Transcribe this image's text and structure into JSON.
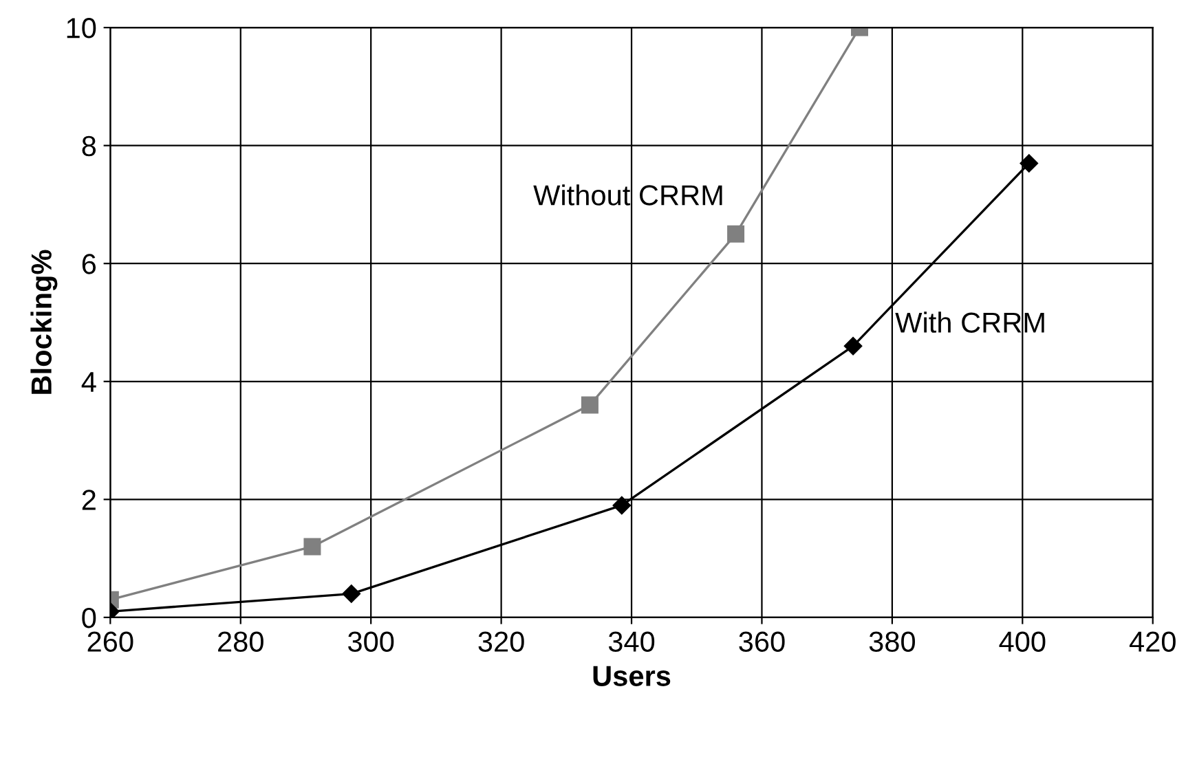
{
  "chart_data": {
    "type": "line",
    "xlabel": "Users",
    "ylabel": "Blocking%",
    "xlim": [
      260,
      420
    ],
    "xticks": [
      260,
      280,
      300,
      320,
      340,
      360,
      380,
      400,
      420
    ],
    "ylim": [
      0,
      10
    ],
    "yticks": [
      0,
      2,
      4,
      6,
      8,
      10
    ],
    "grid": true,
    "legend": false,
    "series": [
      {
        "name": "Without CRRM",
        "color": "#808080",
        "marker": "square",
        "x": [
          260,
          291,
          333.6,
          356,
          375
        ],
        "values": [
          0.3,
          1.2,
          3.6,
          6.5,
          10
        ]
      },
      {
        "name": "With CRRM",
        "color": "#000000",
        "marker": "diamond",
        "x": [
          260,
          297,
          338.5,
          374,
          401
        ],
        "values": [
          0.1,
          0.4,
          1.9,
          4.6,
          7.7
        ]
      }
    ]
  }
}
